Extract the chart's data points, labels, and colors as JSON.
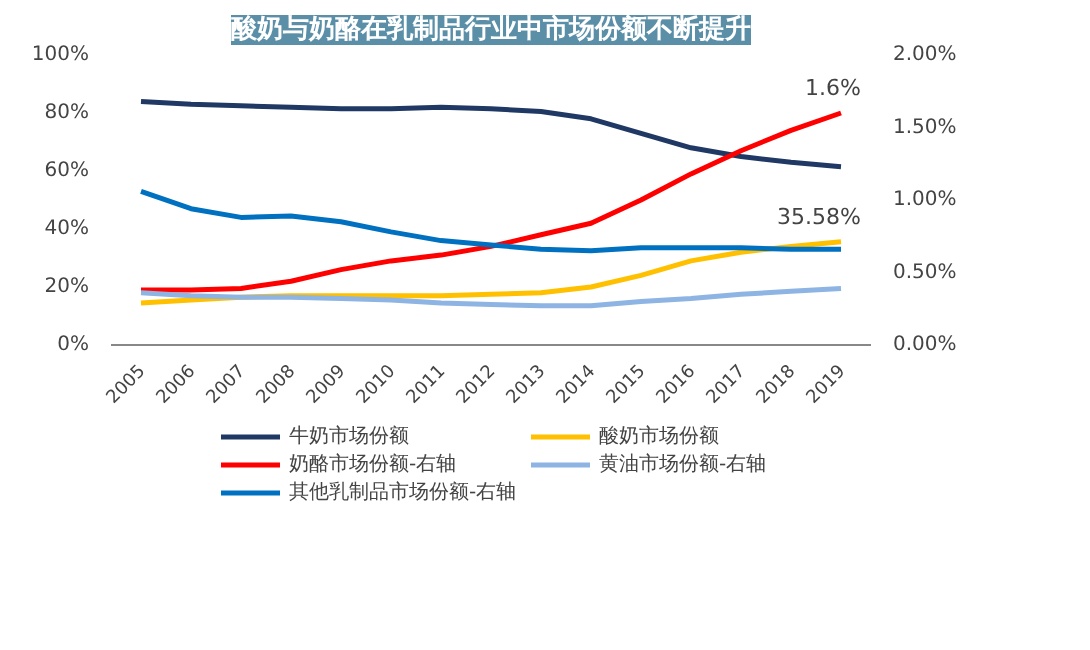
{
  "chart_data": {
    "type": "line",
    "title": "酸奶与奶酪在乳制品行业中市场份额不断提升",
    "categories": [
      "2005",
      "2006",
      "2007",
      "2008",
      "2009",
      "2010",
      "2011",
      "2012",
      "2013",
      "2014",
      "2015",
      "2016",
      "2017",
      "2018",
      "2019"
    ],
    "series": [
      {
        "name": "牛奶市场份额",
        "color": "#1f3864",
        "values": [
          84,
          83,
          82.5,
          82,
          81.5,
          81.5,
          82,
          81.5,
          80.5,
          78,
          73,
          68,
          65,
          63,
          61.5
        ]
      },
      {
        "name": "酸奶市场份额",
        "color": "#ffc000",
        "values": [
          14.5,
          15.5,
          16.5,
          17,
          17,
          17,
          17,
          17.5,
          18,
          20,
          24,
          29,
          32,
          34,
          35.58
        ],
        "value_labels": [
          null,
          null,
          null,
          null,
          null,
          null,
          null,
          null,
          null,
          null,
          null,
          null,
          null,
          null,
          "35.58%"
        ]
      },
      {
        "name": "奶酪市场份额-右轴",
        "color": "#ff0000",
        "axis": "y2",
        "values": [
          0.38,
          0.38,
          0.39,
          0.44,
          0.52,
          0.58,
          0.62,
          0.68,
          0.76,
          0.84,
          1.0,
          1.18,
          1.34,
          1.48,
          1.6
        ],
        "value_labels": [
          null,
          null,
          null,
          null,
          null,
          null,
          null,
          null,
          null,
          null,
          null,
          null,
          null,
          null,
          "1.6%"
        ]
      },
      {
        "name": "黄油市场份额-右轴",
        "color": "#8eb4e3",
        "axis": "y2",
        "values": [
          0.36,
          0.34,
          0.33,
          0.33,
          0.32,
          0.31,
          0.29,
          0.28,
          0.27,
          0.27,
          0.3,
          0.32,
          0.35,
          0.37,
          0.39
        ]
      },
      {
        "name": "其他乳制品市场份额-右轴",
        "color": "#0070c0",
        "axis": "y2",
        "values": [
          1.06,
          0.94,
          0.88,
          0.89,
          0.85,
          0.78,
          0.72,
          0.69,
          0.66,
          0.65,
          0.67,
          0.67,
          0.67,
          0.66,
          0.66
        ]
      }
    ],
    "ylim": [
      0,
      100
    ],
    "yticks": [
      {
        "value": 0,
        "label": "0%"
      },
      {
        "value": 20,
        "label": "20%"
      },
      {
        "value": 40,
        "label": "40%"
      },
      {
        "value": 60,
        "label": "60%"
      },
      {
        "value": 80,
        "label": "80%"
      },
      {
        "value": 100,
        "label": "100%"
      }
    ],
    "y2lim": [
      0,
      2
    ],
    "y2ticks": [
      {
        "value": 0,
        "label": "0.00%"
      },
      {
        "value": 0.5,
        "label": "0.50%"
      },
      {
        "value": 1,
        "label": "1.00%"
      },
      {
        "value": 1.5,
        "label": "1.50%"
      },
      {
        "value": 2,
        "label": "2.00%"
      }
    ],
    "grid": false,
    "legend": "bottom",
    "line_style": "solid"
  }
}
